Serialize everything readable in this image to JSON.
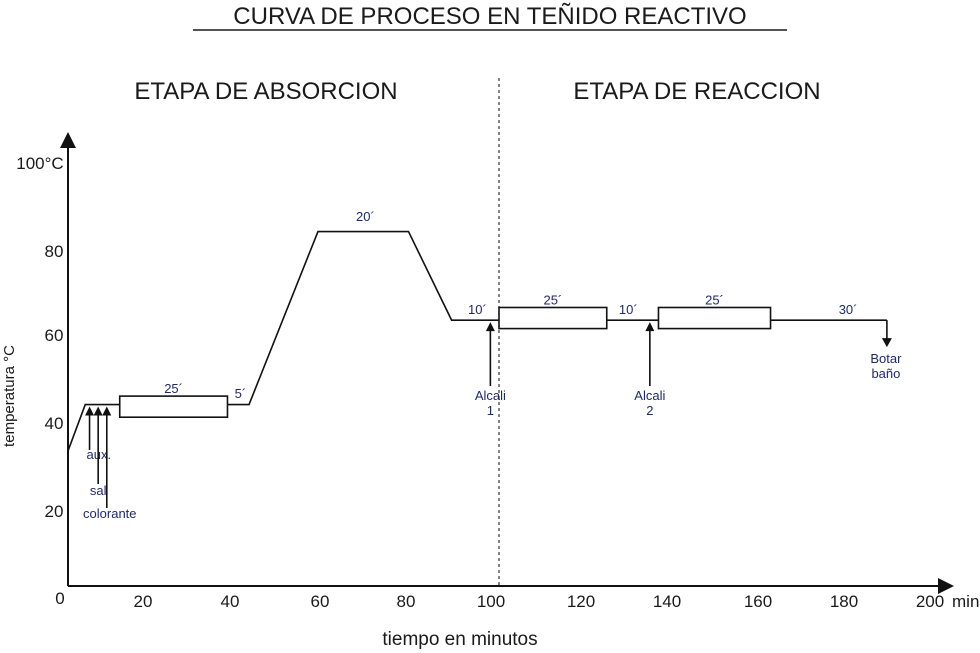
{
  "chart_data": {
    "type": "line",
    "title": "CURVA DE PROCESO EN TEÑIDO REACTIVO",
    "xlabel": "tiempo en minutos",
    "ylabel": "temperatura °C",
    "x_unit": "min",
    "xlim": [
      0,
      200
    ],
    "ylim": [
      0,
      100
    ],
    "x_ticks": [
      "0",
      "20",
      "40",
      "60",
      "80",
      "100",
      "120",
      "140",
      "160",
      "180",
      "200"
    ],
    "y_ticks": [
      "20",
      "40",
      "60",
      "80",
      "100°C"
    ],
    "stages": [
      {
        "name": "ETAPA DE ABSORCION"
      },
      {
        "name": "ETAPA DE REACCION"
      }
    ],
    "stage_divider_x": 100,
    "series": [
      {
        "x": [
          0,
          4,
          12,
          42,
          58,
          79,
          89,
          100,
          190
        ],
        "y": [
          32,
          43,
          43,
          43,
          84,
          84,
          63,
          63,
          63
        ]
      }
    ],
    "holds": [
      {
        "x0": 12,
        "x1": 37,
        "y0": 40,
        "y1": 45,
        "label": "25´"
      },
      {
        "x0": 100,
        "x1": 125,
        "y0": 61,
        "y1": 66,
        "label": "25´"
      },
      {
        "x0": 137,
        "x1": 163,
        "y0": 61,
        "y1": 66,
        "label": "25´"
      }
    ],
    "durations": [
      {
        "x": 40,
        "y": 44.5,
        "label": "5´"
      },
      {
        "x": 69,
        "y": 86.5,
        "label": "20´"
      },
      {
        "x": 95,
        "y": 64.5,
        "label": "10´"
      },
      {
        "x": 130,
        "y": 64.5,
        "label": "10´"
      },
      {
        "x": 181,
        "y": 64.5,
        "label": "30´"
      }
    ],
    "events": [
      {
        "x": 5,
        "label": "aux."
      },
      {
        "x": 7,
        "label": "sal"
      },
      {
        "x": 9,
        "label": "colorante"
      },
      {
        "x": 98,
        "label": "Alcali 1"
      },
      {
        "x": 135,
        "label": "Alcali 2"
      },
      {
        "x": 190,
        "label": "Botar baño"
      }
    ]
  }
}
